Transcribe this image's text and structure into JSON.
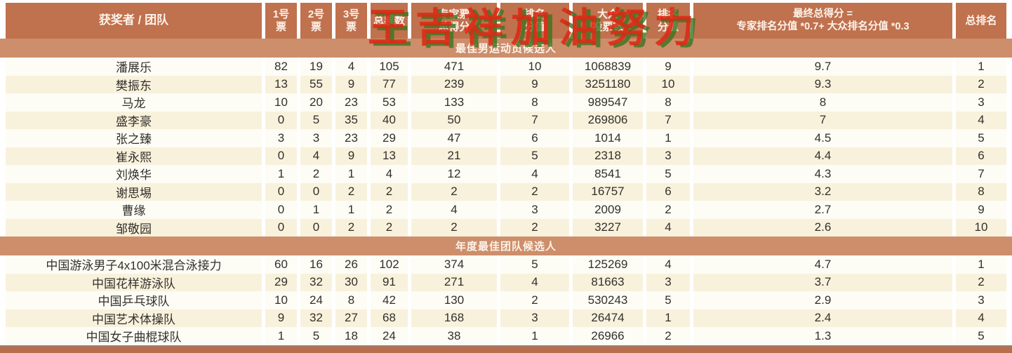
{
  "watermark": {
    "text": "王吉祥加油努力",
    "red": "rgba(219,41,21,.88)",
    "green": "rgba(56,118,32,.8)"
  },
  "colors": {
    "header_bg": "#c0714e",
    "band_bg": "#cd8e6b",
    "row_light": "#fdfcf5",
    "row_alt": "#f8f1dc",
    "header_fg": "#fcf3ea",
    "data_fg": "#33302b",
    "bottom_bg": "#b96f4d"
  },
  "header": {
    "columns": [
      {
        "id": "name",
        "lines": [
          "获奖者 / 团队"
        ]
      },
      {
        "id": "vote1",
        "lines": [
          "1号",
          "票"
        ]
      },
      {
        "id": "vote2",
        "lines": [
          "2号",
          "票"
        ]
      },
      {
        "id": "vote3",
        "lines": [
          "3号",
          "票"
        ]
      },
      {
        "id": "total-votes",
        "lines": [
          "总票数"
        ]
      },
      {
        "id": "expert-score",
        "lines": [
          "专家票",
          "总得分"
        ]
      },
      {
        "id": "expert-rank-score",
        "lines": [
          "排名",
          "分值"
        ]
      },
      {
        "id": "public-votes",
        "lines": [
          "大众",
          "投票数"
        ]
      },
      {
        "id": "public-rank-score",
        "lines": [
          "排名",
          "分值"
        ]
      },
      {
        "id": "final-score",
        "lines": [
          "最终总得分 =",
          "专家排名分值 *0.7+ 大众排名分值 *0.3"
        ]
      },
      {
        "id": "overall-rank",
        "lines": [
          "总排名"
        ]
      }
    ]
  },
  "sections": [
    {
      "title": "最佳男运动员候选人",
      "rows": [
        {
          "name": "潘展乐",
          "values": [
            "82",
            "19",
            "4",
            "105",
            "471",
            "10",
            "1068839",
            "9",
            "9.7",
            "1"
          ]
        },
        {
          "name": "樊振东",
          "values": [
            "13",
            "55",
            "9",
            "77",
            "239",
            "9",
            "3251180",
            "10",
            "9.3",
            "2"
          ]
        },
        {
          "name": "马龙",
          "values": [
            "10",
            "20",
            "23",
            "53",
            "133",
            "8",
            "989547",
            "8",
            "8",
            "3"
          ]
        },
        {
          "name": "盛李豪",
          "values": [
            "0",
            "5",
            "35",
            "40",
            "50",
            "7",
            "269806",
            "7",
            "7",
            "4"
          ]
        },
        {
          "name": "张之臻",
          "values": [
            "3",
            "3",
            "23",
            "29",
            "47",
            "6",
            "1014",
            "1",
            "4.5",
            "5"
          ]
        },
        {
          "name": "崔永熙",
          "values": [
            "0",
            "4",
            "9",
            "13",
            "21",
            "5",
            "2318",
            "3",
            "4.4",
            "6"
          ]
        },
        {
          "name": "刘焕华",
          "values": [
            "1",
            "2",
            "1",
            "4",
            "12",
            "4",
            "8541",
            "5",
            "4.3",
            "7"
          ]
        },
        {
          "name": "谢思埸",
          "values": [
            "0",
            "0",
            "2",
            "2",
            "2",
            "2",
            "16757",
            "6",
            "3.2",
            "8"
          ]
        },
        {
          "name": "曹缘",
          "values": [
            "0",
            "1",
            "1",
            "2",
            "4",
            "3",
            "2009",
            "2",
            "2.7",
            "9"
          ]
        },
        {
          "name": "邹敬园",
          "values": [
            "0",
            "0",
            "2",
            "2",
            "2",
            "2",
            "3227",
            "4",
            "2.6",
            "10"
          ]
        }
      ]
    },
    {
      "title": "年度最佳团队候选人",
      "rows": [
        {
          "name": "中国游泳男子4x100米混合泳接力",
          "values": [
            "60",
            "16",
            "26",
            "102",
            "374",
            "5",
            "125269",
            "4",
            "4.7",
            "1"
          ]
        },
        {
          "name": "中国花样游泳队",
          "values": [
            "29",
            "32",
            "30",
            "91",
            "271",
            "4",
            "81663",
            "3",
            "3.7",
            "2"
          ]
        },
        {
          "name": "中国乒乓球队",
          "values": [
            "10",
            "24",
            "8",
            "42",
            "130",
            "2",
            "530243",
            "5",
            "2.9",
            "3"
          ]
        },
        {
          "name": "中国艺术体操队",
          "values": [
            "9",
            "32",
            "27",
            "68",
            "168",
            "3",
            "26474",
            "1",
            "2.4",
            "4"
          ]
        },
        {
          "name": "中国女子曲棍球队",
          "values": [
            "1",
            "5",
            "18",
            "24",
            "38",
            "1",
            "26966",
            "2",
            "1.3",
            "5"
          ]
        }
      ]
    }
  ]
}
